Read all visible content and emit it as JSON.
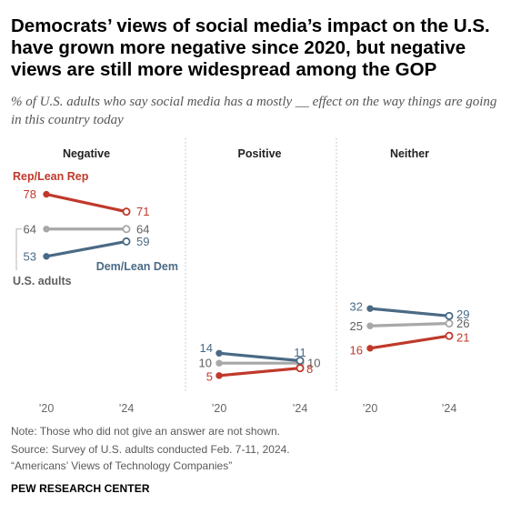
{
  "title": "Democrats’ views of social media’s impact on the U.S. have grown more negative since 2020, but negative views are still more widespread among the GOP",
  "subtitle": "% of U.S. adults who say social media has a mostly __ effect on the way things are going in this country today",
  "chart_data": {
    "type": "line",
    "x": [
      "’20",
      "’24"
    ],
    "panels": [
      {
        "label": "Negative",
        "series": [
          {
            "name": "Rep/Lean Rep",
            "values": [
              78,
              71
            ]
          },
          {
            "name": "U.S. adults",
            "values": [
              64,
              64
            ]
          },
          {
            "name": "Dem/Lean Dem",
            "values": [
              53,
              59
            ]
          }
        ]
      },
      {
        "label": "Positive",
        "series": [
          {
            "name": "Rep/Lean Rep",
            "values": [
              5,
              8
            ]
          },
          {
            "name": "U.S. adults",
            "values": [
              10,
              10
            ]
          },
          {
            "name": "Dem/Lean Dem",
            "values": [
              14,
              11
            ]
          }
        ]
      },
      {
        "label": "Neither",
        "series": [
          {
            "name": "Rep/Lean Rep",
            "values": [
              16,
              21
            ]
          },
          {
            "name": "U.S. adults",
            "values": [
              25,
              26
            ]
          },
          {
            "name": "Dem/Lean Dem",
            "values": [
              32,
              29
            ]
          }
        ]
      }
    ],
    "colors": {
      "Rep/Lean Rep": "#c0392b",
      "U.S. adults": "#a8a8a8",
      "Dem/Lean Dem": "#4a6a85"
    },
    "label_colors": {
      "Rep/Lean Rep": "#c0392b",
      "U.S. adults": "#5f5f5f",
      "Dem/Lean Dem": "#4a6a85"
    }
  },
  "notes": [
    "Note: Those who did not give an answer are not shown.",
    "Source: Survey of U.S. adults conducted Feb. 7-11, 2024.",
    "“Americans’ Views of Technology Companies”"
  ],
  "source_org": "PEW RESEARCH CENTER"
}
